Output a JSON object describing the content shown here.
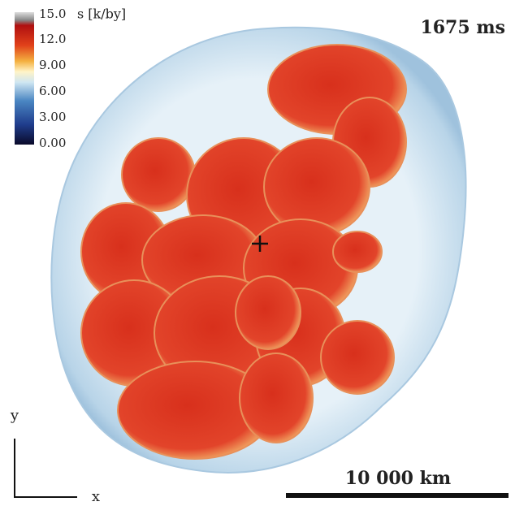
{
  "colorbar": {
    "label": "s [k/by]",
    "ticks": [
      "15.0",
      "12.0",
      "9.00",
      "6.00",
      "3.00",
      "0.00"
    ]
  },
  "time": "1675 ms",
  "scale_bar": "10 000 km",
  "axes": {
    "x": "x",
    "y": "y"
  }
}
